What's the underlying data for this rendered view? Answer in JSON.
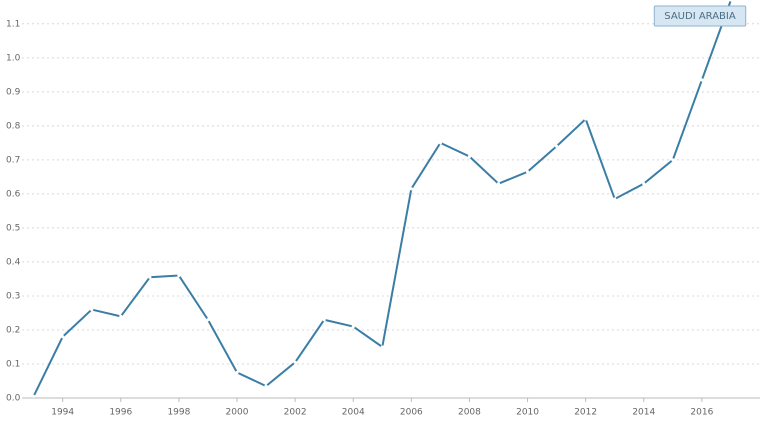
{
  "chart_data": {
    "type": "line",
    "x": [
      1993,
      1994,
      1995,
      1996,
      1997,
      1998,
      1999,
      2000,
      2001,
      2002,
      2003,
      2004,
      2005,
      2006,
      2007,
      2008,
      2009,
      2010,
      2011,
      2012,
      2013,
      2014,
      2015,
      2016,
      2017
    ],
    "series": [
      {
        "name": "SAUDI ARABIA",
        "color": "#3a7ea6",
        "values": [
          0.005,
          0.18,
          0.26,
          0.24,
          0.355,
          0.36,
          0.23,
          0.075,
          0.035,
          0.105,
          0.23,
          0.21,
          0.15,
          0.615,
          0.75,
          0.71,
          0.63,
          0.665,
          0.74,
          0.82,
          0.585,
          0.63,
          0.7,
          0.935,
          1.17
        ]
      }
    ],
    "xlim": [
      1992.6,
      2018.0
    ],
    "xticks": [
      1994,
      1996,
      1998,
      2000,
      2002,
      2004,
      2006,
      2008,
      2010,
      2012,
      2014,
      2016
    ],
    "ylim": [
      0,
      1.17
    ],
    "yticks": [
      {
        "value": 0,
        "label": "0.0"
      },
      0.1,
      0.2,
      0.3,
      0.4,
      0.5,
      0.6,
      0.7,
      0.8,
      0.9,
      {
        "value": 1,
        "label": "1.0"
      },
      1.1
    ],
    "grid": true
  }
}
